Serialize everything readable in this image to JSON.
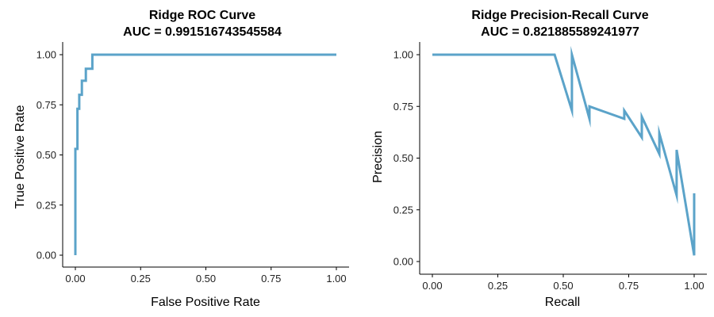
{
  "chart_data": [
    {
      "type": "line",
      "title": "Ridge ROC Curve",
      "subtitle": "AUC =  0.991516743545584",
      "xlabel": "False Positive Rate",
      "ylabel": "True Positive Rate",
      "xlim": [
        0,
        1
      ],
      "ylim": [
        0,
        1
      ],
      "xticks": [
        "0.00",
        "0.25",
        "0.50",
        "0.75",
        "1.00"
      ],
      "yticks": [
        "0.00",
        "0.25",
        "0.50",
        "0.75",
        "1.00"
      ],
      "grid": false,
      "color": "#5BA3C9",
      "series": [
        {
          "x": [
            0.0,
            0.0,
            0.008,
            0.008,
            0.015,
            0.015,
            0.025,
            0.025,
            0.04,
            0.04,
            0.065,
            0.065,
            1.0
          ],
          "y": [
            0.0,
            0.53,
            0.53,
            0.73,
            0.73,
            0.8,
            0.8,
            0.87,
            0.87,
            0.93,
            0.93,
            1.0,
            1.0
          ]
        }
      ]
    },
    {
      "type": "line",
      "title": "Ridge Precision-Recall Curve",
      "subtitle": "AUC =  0.821885589241977",
      "xlabel": "Recall",
      "ylabel": "Precision",
      "xlim": [
        0,
        1
      ],
      "ylim": [
        0,
        1
      ],
      "xticks": [
        "0.00",
        "0.25",
        "0.50",
        "0.75",
        "1.00"
      ],
      "yticks": [
        "0.00",
        "0.25",
        "0.50",
        "0.75",
        "1.00"
      ],
      "grid": false,
      "color": "#5BA3C9",
      "series": [
        {
          "x": [
            0.0,
            0.467,
            0.533,
            0.533,
            0.6,
            0.6,
            0.733,
            0.733,
            0.8,
            0.8,
            0.867,
            0.867,
            0.933,
            0.933,
            1.0,
            1.0
          ],
          "y": [
            1.0,
            1.0,
            0.73,
            1.0,
            0.69,
            0.75,
            0.69,
            0.73,
            0.6,
            0.7,
            0.52,
            0.62,
            0.32,
            0.54,
            0.03,
            0.33
          ]
        }
      ]
    }
  ]
}
